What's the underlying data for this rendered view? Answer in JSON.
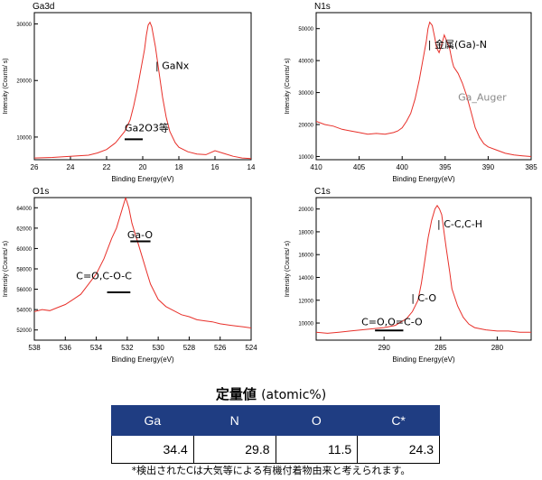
{
  "chart_data": [
    {
      "type": "line",
      "panel_label": "Ga3d",
      "xlabel": "Binding Energy(eV)",
      "ylabel": "Intensity (Counts/ s)",
      "xlim": [
        26,
        14
      ],
      "ylim": [
        6000,
        32000
      ],
      "xticks": [
        26,
        24,
        22,
        20,
        18,
        16,
        14
      ],
      "yticks": [
        10000,
        20000,
        30000
      ],
      "grid": false,
      "series": [
        {
          "x": [
            26,
            25,
            24,
            23,
            22.5,
            22,
            21.5,
            21,
            20.7,
            20.5,
            20.3,
            20.1,
            19.9,
            19.8,
            19.7,
            19.6,
            19.5,
            19.3,
            19.1,
            18.9,
            18.7,
            18.5,
            18.2,
            18,
            17.5,
            17,
            16.5,
            16,
            15.5,
            15,
            14.5,
            14
          ],
          "y": [
            6300,
            6400,
            6600,
            6800,
            7200,
            7800,
            9000,
            11000,
            13000,
            15500,
            18500,
            22000,
            25500,
            28000,
            29800,
            30300,
            29500,
            26000,
            21500,
            17000,
            13500,
            11000,
            9000,
            8200,
            7400,
            7000,
            6900,
            7600,
            7100,
            6600,
            6300,
            6200
          ]
        }
      ],
      "annotations": [
        {
          "text": "| GaNx",
          "x": 19.3,
          "y": 22000
        },
        {
          "text": "Ga2O3等",
          "x": 21,
          "y": 11000,
          "underline": [
            21.0,
            20.0
          ],
          "underline_y": 9600
        }
      ]
    },
    {
      "type": "line",
      "panel_label": "N1s",
      "xlabel": "Binding Energy(eV)",
      "ylabel": "Intensity (Counts/ s)",
      "xlim": [
        410,
        385
      ],
      "ylim": [
        9000,
        55000
      ],
      "xticks": [
        410,
        405,
        400,
        395,
        390,
        385
      ],
      "yticks": [
        10000,
        20000,
        30000,
        40000,
        50000
      ],
      "grid": false,
      "series": [
        {
          "x": [
            410,
            409,
            408,
            407,
            406,
            405,
            404,
            403,
            402,
            401,
            400.5,
            400,
            399.5,
            399,
            398.5,
            398,
            397.6,
            397.2,
            397,
            396.8,
            396.5,
            396.2,
            396,
            395.7,
            395.4,
            395.1,
            394.8,
            394.5,
            394.2,
            394,
            393.5,
            393,
            392.5,
            392,
            391.5,
            391,
            390.5,
            390,
            389,
            388,
            387,
            386,
            385
          ],
          "y": [
            21000,
            20000,
            19500,
            18500,
            18000,
            17500,
            17000,
            17200,
            17000,
            17500,
            18000,
            19000,
            21000,
            23500,
            28000,
            34000,
            40000,
            46000,
            50000,
            52000,
            51000,
            47000,
            44000,
            42500,
            45000,
            48000,
            46000,
            44000,
            40000,
            38000,
            36000,
            33000,
            29000,
            24000,
            19000,
            16000,
            14000,
            13000,
            12000,
            11000,
            10500,
            10200,
            10000
          ]
        }
      ],
      "annotations": [
        {
          "text": "| 金属(Ga)-N",
          "x": 397,
          "y": 44000
        },
        {
          "text": "Ga_Auger",
          "x": 393.5,
          "y": 27500
        }
      ]
    },
    {
      "type": "line",
      "panel_label": "O1s",
      "xlabel": "Binding Energy(eV)",
      "ylabel": "Intensity (Counts/ s)",
      "xlim": [
        538,
        524
      ],
      "ylim": [
        51000,
        65000
      ],
      "xticks": [
        538,
        536,
        534,
        532,
        530,
        528,
        526,
        524
      ],
      "yticks": [
        52000,
        54000,
        56000,
        58000,
        60000,
        62000,
        64000
      ],
      "grid": false,
      "series": [
        {
          "x": [
            538,
            537.5,
            537,
            536.5,
            536,
            535.5,
            535,
            534.5,
            534,
            533.5,
            533,
            532.7,
            532.5,
            532.3,
            532.1,
            531.9,
            531.7,
            531.5,
            531.3,
            531,
            530.7,
            530.5,
            530,
            529.5,
            529,
            528.5,
            528,
            527.5,
            527,
            526.5,
            526,
            525.5,
            525,
            524.5,
            524
          ],
          "y": [
            53800,
            54000,
            53900,
            54200,
            54500,
            55000,
            55500,
            56500,
            57500,
            59000,
            61000,
            62000,
            63000,
            64000,
            65000,
            64000,
            62500,
            61500,
            60500,
            59000,
            57500,
            56500,
            55000,
            54300,
            53900,
            53500,
            53300,
            53000,
            52900,
            52800,
            52600,
            52500,
            52400,
            52300,
            52200
          ]
        }
      ],
      "annotations": [
        {
          "text": "Ga-O",
          "x": 532,
          "y": 61000,
          "underline": [
            531.8,
            530.5
          ],
          "underline_y": 60700
        },
        {
          "text": "C=O,C-O-C",
          "x": 535.3,
          "y": 57000,
          "underline": [
            533.3,
            531.8
          ],
          "underline_y": 55700
        }
      ]
    },
    {
      "type": "line",
      "panel_label": "C1s",
      "xlabel": "Binding Energy(eV)",
      "ylabel": "Intensity (Counts/ s)",
      "xlim": [
        296,
        277
      ],
      "ylim": [
        8500,
        21000
      ],
      "xticks": [
        290,
        285,
        280
      ],
      "yticks": [
        10000,
        12000,
        14000,
        16000,
        18000,
        20000
      ],
      "grid": false,
      "series": [
        {
          "x": [
            296,
            295,
            294,
            293,
            292,
            291,
            290,
            289,
            288.5,
            288,
            287.5,
            287,
            286.7,
            286.4,
            286.1,
            285.8,
            285.5,
            285.3,
            285.1,
            284.9,
            284.7,
            284.5,
            284.2,
            284,
            283.5,
            283,
            282.5,
            282,
            281.5,
            281,
            280,
            279,
            278,
            277
          ],
          "y": [
            9200,
            9100,
            9200,
            9300,
            9400,
            9500,
            9600,
            9800,
            10100,
            10400,
            11000,
            12000,
            13500,
            15500,
            17500,
            19000,
            20000,
            20300,
            20000,
            19500,
            18000,
            16500,
            14500,
            13000,
            11500,
            10500,
            9900,
            9600,
            9500,
            9400,
            9300,
            9300,
            9200,
            9200
          ]
        }
      ],
      "annotations": [
        {
          "text": "| C-C,C-H",
          "x": 285.3,
          "y": 18400
        },
        {
          "text": "| C-O",
          "x": 287.6,
          "y": 11900
        },
        {
          "text": "C=O,O=C-O",
          "x": 292,
          "y": 9800,
          "underline": [
            290.8,
            288.3
          ],
          "underline_y": 9350
        }
      ]
    }
  ],
  "quant": {
    "title": "定量値",
    "unit": "(atomic%)",
    "headers": [
      "Ga",
      "N",
      "O",
      "C*"
    ],
    "values": [
      "34.4",
      "29.8",
      "11.5",
      "24.3"
    ],
    "footnote": "*検出されたCは大気等による有機付着物由来と考えられます。"
  }
}
